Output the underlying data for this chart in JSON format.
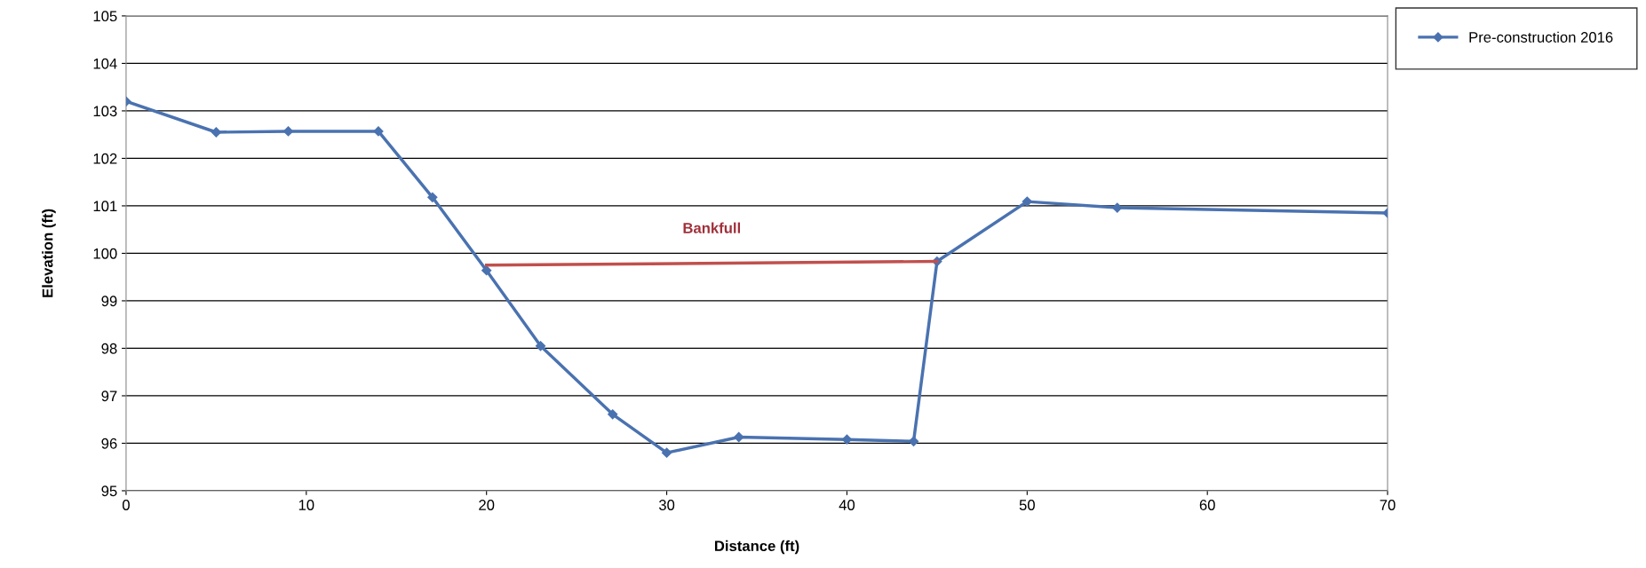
{
  "chart_data": {
    "type": "line",
    "xlabel": "Distance (ft)",
    "ylabel": "Elevation (ft)",
    "xlim": [
      0,
      70
    ],
    "xticks": [
      0,
      10,
      20,
      30,
      40,
      50,
      60,
      70
    ],
    "ylim": [
      95,
      105
    ],
    "yticks": [
      95,
      96,
      97,
      98,
      99,
      100,
      101,
      102,
      103,
      104,
      105
    ],
    "grid": "y",
    "legend": "top right",
    "marker": "diamond",
    "line_style": "solid",
    "series": [
      {
        "name": "Pre-construction 2016",
        "color": "#4a72b0",
        "x": [
          0,
          5,
          9,
          14,
          17,
          20,
          23,
          27,
          30,
          34,
          40,
          43.7,
          45,
          50,
          55,
          70
        ],
        "values": [
          103.2,
          102.55,
          102.57,
          102.57,
          101.18,
          99.64,
          98.05,
          96.61,
          95.8,
          96.13,
          96.08,
          96.04,
          99.83,
          101.09,
          100.96,
          100.85
        ]
      },
      {
        "type": "line",
        "color": "#c0504d",
        "marker": "none",
        "x": [
          20,
          45
        ],
        "values": [
          99.75,
          99.83
        ]
      }
    ],
    "annotations": [
      {
        "text": "Bankfull",
        "x": 32.5,
        "y": 99.79
      }
    ]
  }
}
